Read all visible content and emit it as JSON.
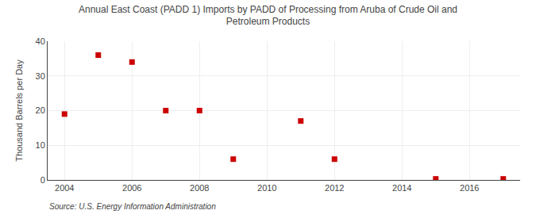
{
  "chart_data": {
    "type": "scatter",
    "title": "Annual East Coast (PADD 1) Imports by PADD of Processing from Aruba of Crude Oil and\nPetroleum Products",
    "ylabel": "Thousand Barrels per Day",
    "annotations": [
      "Source: U.S. Energy Information Administration"
    ],
    "x": [
      2004,
      2005,
      2006,
      2007,
      2008,
      2009,
      2011,
      2012,
      2015,
      2017
    ],
    "values": [
      19.0,
      36.0,
      34.0,
      20.0,
      20.0,
      6.0,
      17.0,
      6.0,
      0.3,
      0.3
    ],
    "color": "#cc0000",
    "marker": "square",
    "xlim": [
      2003.5,
      2017.5
    ],
    "ylim": [
      0,
      40
    ],
    "xticks": [
      2004,
      2006,
      2008,
      2010,
      2012,
      2014,
      2016
    ],
    "yticks": [
      0,
      10,
      20,
      30,
      40
    ],
    "grid": true
  }
}
